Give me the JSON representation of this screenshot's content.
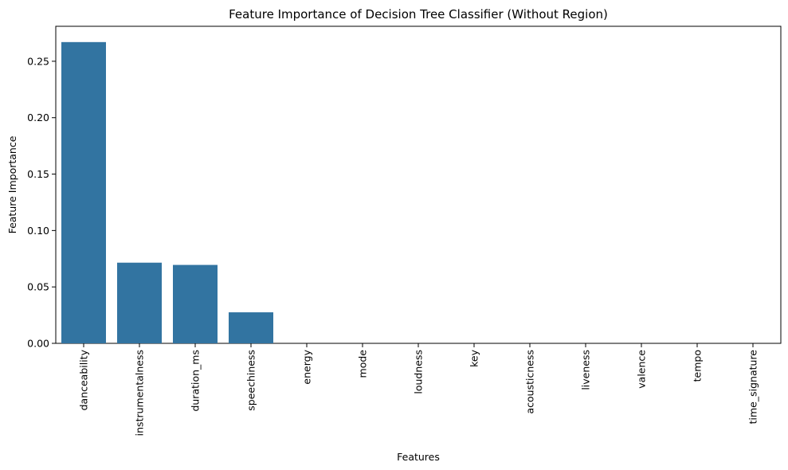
{
  "chart_data": {
    "type": "bar",
    "title": "Feature Importance of Decision Tree Classifier (Without Region)",
    "xlabel": "Features",
    "ylabel": "Feature Importance",
    "categories": [
      "danceability",
      "instrumentalness",
      "duration_ms",
      "speechiness",
      "energy",
      "mode",
      "loudness",
      "key",
      "acousticness",
      "liveness",
      "valence",
      "tempo",
      "time_signature"
    ],
    "values": [
      0.267,
      0.0715,
      0.0695,
      0.0275,
      0,
      0,
      0,
      0,
      0,
      0,
      0,
      0,
      0
    ],
    "ylim": [
      0,
      0.281
    ],
    "yticks": [
      0.0,
      0.05,
      0.1,
      0.15,
      0.2,
      0.25
    ],
    "ytick_labels": [
      "0.00",
      "0.05",
      "0.10",
      "0.15",
      "0.20",
      "0.25"
    ],
    "bar_color": "#3274a1",
    "grid": false,
    "legend": "none"
  }
}
